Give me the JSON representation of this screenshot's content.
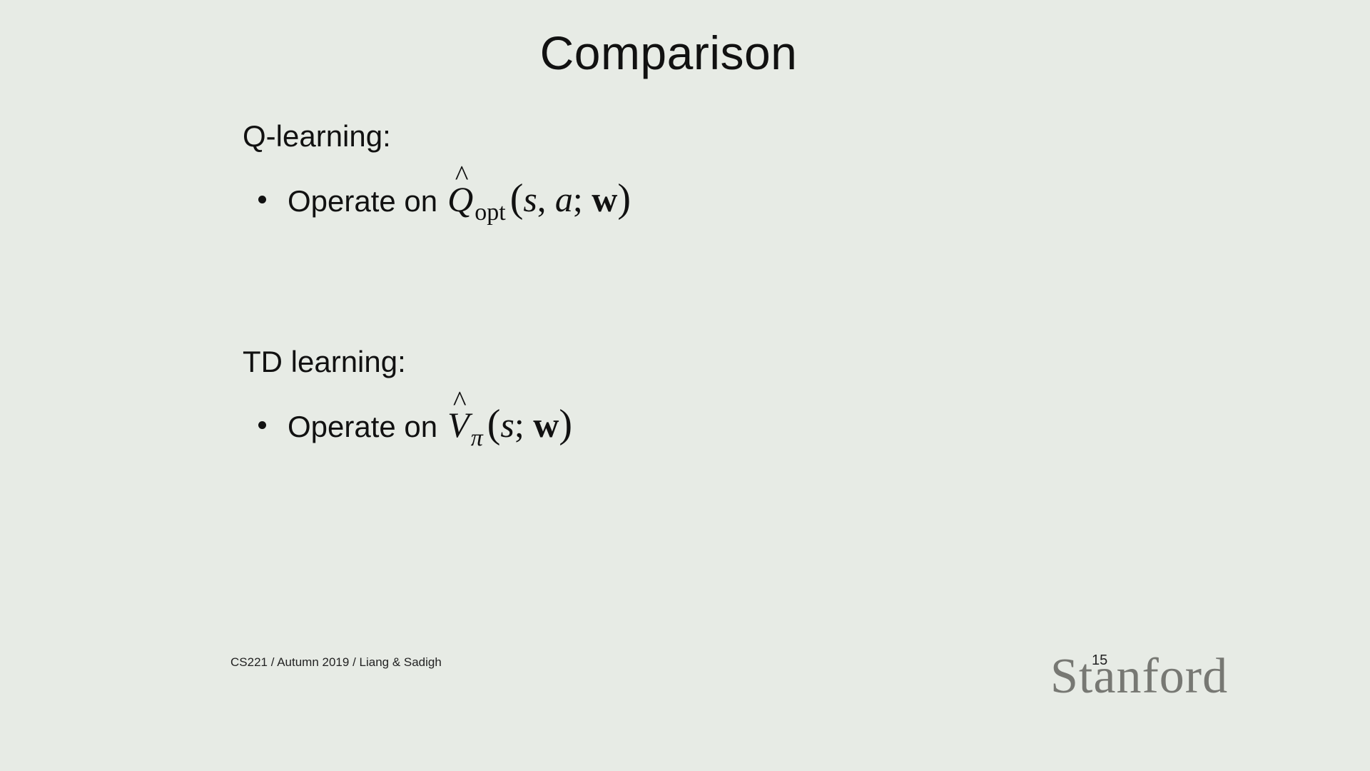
{
  "slide": {
    "title": "Comparison",
    "sections": [
      {
        "heading": "Q-learning:",
        "bullet": {
          "text": "Operate on",
          "math": {
            "symbol": "Q",
            "hat": "^",
            "subscript": "opt",
            "open": "(",
            "args": [
              "s",
              ", ",
              "a",
              "; "
            ],
            "bold_arg": "w",
            "close": ")"
          }
        }
      },
      {
        "heading": "TD learning:",
        "bullet": {
          "text": "Operate on",
          "math": {
            "symbol": "V",
            "hat": "^",
            "subscript": "π",
            "open": "(",
            "args": [
              "s",
              "; "
            ],
            "bold_arg": "w",
            "close": ")"
          }
        }
      }
    ],
    "footer": "CS221 / Autumn 2019 / Liang & Sadigh",
    "page_number": "15",
    "logo_text": "Stanford",
    "colors": {
      "background": "#e7ebe5",
      "text": "#111111",
      "logo": "#777873"
    }
  }
}
